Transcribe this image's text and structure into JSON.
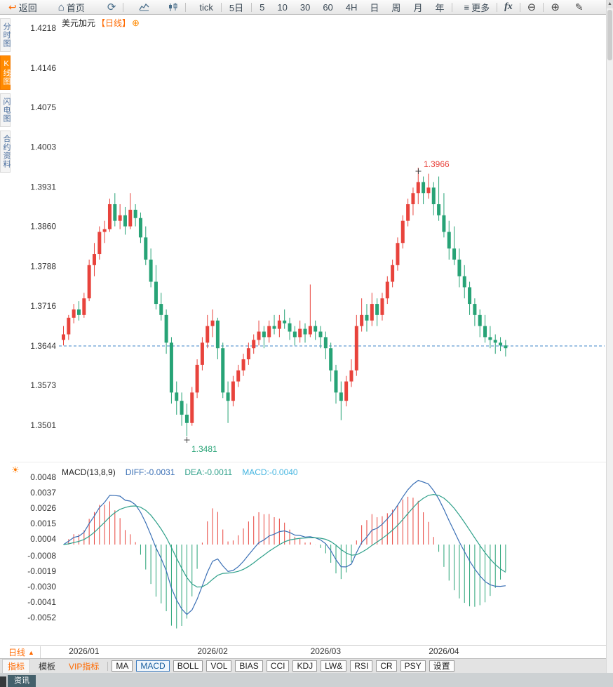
{
  "toolbar": {
    "back": "返回",
    "home": "首页",
    "tick_label": "tick",
    "five_day": "5日",
    "periods": [
      "5",
      "10",
      "30",
      "60",
      "4H",
      "日",
      "周",
      "月",
      "年"
    ],
    "more": "更多",
    "fx": "fx"
  },
  "sidebar": {
    "items": [
      {
        "label": "分时图",
        "active": false
      },
      {
        "label": "K线图",
        "active": true
      },
      {
        "label": "闪电图",
        "active": false
      },
      {
        "label": "合约资料",
        "active": false
      }
    ]
  },
  "chart": {
    "symbol": "美元加元",
    "period_tag": "【日线】"
  },
  "macd_header": {
    "title": "MACD(13,8,9)",
    "diff": "DIFF:-0.0031",
    "dea": "DEA:-0.0011",
    "macd": "MACD:-0.0040"
  },
  "axes": {
    "price_ticks": [
      "1.4218",
      "1.4146",
      "1.4075",
      "1.4003",
      "1.3931",
      "1.3860",
      "1.3788",
      "1.3716",
      "1.3644",
      "1.3573",
      "1.3501"
    ],
    "macd_ticks": [
      "0.0048",
      "0.0037",
      "0.0026",
      "0.0015",
      "0.0004",
      "-0.0008",
      "-0.0019",
      "-0.0030",
      "-0.0041",
      "-0.0052"
    ],
    "x_ticks": [
      "2026/01",
      "2026/02",
      "2026/03",
      "2026/04"
    ]
  },
  "bottom": {
    "period_selector": "日线",
    "news_tab": "资讯"
  },
  "indicator_bar": {
    "tabs": [
      {
        "label": "指标",
        "active": true,
        "vip": false
      },
      {
        "label": "模板",
        "active": false,
        "vip": false
      },
      {
        "label": "VIP指标",
        "active": false,
        "vip": true
      }
    ],
    "buttons": [
      "MA",
      "MACD",
      "BOLL",
      "VOL",
      "BIAS",
      "CCI",
      "KDJ",
      "LW&",
      "RSI",
      "CR",
      "PSY",
      "设置"
    ],
    "active_button": "MACD"
  },
  "colors": {
    "up": "#e8433c",
    "down": "#27a376",
    "accent_orange": "#ff6a00",
    "diff_line": "#3a6fb5",
    "dea_line": "#2fa08a",
    "macd_value_text": "#45b5e0",
    "last_price_line": "#3f86c9",
    "axis_text": "#333333"
  },
  "chart_data": {
    "type": "candlestick",
    "symbol": "美元加元",
    "period": "日线",
    "high_annotation": "1.3966",
    "low_annotation": "1.3481",
    "high_index": 69,
    "low_index": 24,
    "last_price": 1.3644,
    "price_axis_range": [
      1.3501,
      1.4218
    ],
    "x_axis_labels": [
      "2026/01",
      "2026/02",
      "2026/03",
      "2026/04"
    ],
    "x_label_indices": [
      4,
      29,
      51,
      74
    ],
    "macd_axis_range": [
      -0.0052,
      0.0048
    ],
    "macd_last": {
      "diff": -0.0031,
      "dea": -0.0011,
      "macd": -0.004
    },
    "ohlc": [
      [
        1.3655,
        1.368,
        1.3645,
        1.3665
      ],
      [
        1.3665,
        1.37,
        1.3655,
        1.3695
      ],
      [
        1.3695,
        1.372,
        1.3685,
        1.371
      ],
      [
        1.371,
        1.3725,
        1.369,
        1.37
      ],
      [
        1.37,
        1.374,
        1.3695,
        1.373
      ],
      [
        1.373,
        1.38,
        1.3725,
        1.379
      ],
      [
        1.379,
        1.383,
        1.377,
        1.381
      ],
      [
        1.381,
        1.386,
        1.38,
        1.385
      ],
      [
        1.385,
        1.387,
        1.383,
        1.3855
      ],
      [
        1.3855,
        1.391,
        1.385,
        1.39
      ],
      [
        1.39,
        1.392,
        1.386,
        1.387
      ],
      [
        1.387,
        1.39,
        1.3855,
        1.388
      ],
      [
        1.388,
        1.3895,
        1.3845,
        1.386
      ],
      [
        1.386,
        1.392,
        1.3855,
        1.389
      ],
      [
        1.389,
        1.39,
        1.386,
        1.3875
      ],
      [
        1.3875,
        1.3885,
        1.383,
        1.384
      ],
      [
        1.384,
        1.386,
        1.379,
        1.38
      ],
      [
        1.38,
        1.382,
        1.375,
        1.376
      ],
      [
        1.376,
        1.379,
        1.371,
        1.372
      ],
      [
        1.372,
        1.374,
        1.369,
        1.37
      ],
      [
        1.37,
        1.371,
        1.363,
        1.365
      ],
      [
        1.365,
        1.366,
        1.354,
        1.356
      ],
      [
        1.356,
        1.358,
        1.352,
        1.3545
      ],
      [
        1.3545,
        1.356,
        1.35,
        1.352
      ],
      [
        1.352,
        1.354,
        1.3481,
        1.3505
      ],
      [
        1.3505,
        1.357,
        1.35,
        1.356
      ],
      [
        1.356,
        1.362,
        1.355,
        1.361
      ],
      [
        1.361,
        1.366,
        1.36,
        1.365
      ],
      [
        1.365,
        1.37,
        1.364,
        1.368
      ],
      [
        1.368,
        1.371,
        1.366,
        1.369
      ],
      [
        1.369,
        1.3695,
        1.362,
        1.364
      ],
      [
        1.364,
        1.365,
        1.355,
        1.356
      ],
      [
        1.356,
        1.358,
        1.3505,
        1.3545
      ],
      [
        1.3545,
        1.359,
        1.3535,
        1.358
      ],
      [
        1.358,
        1.361,
        1.357,
        1.36
      ],
      [
        1.36,
        1.363,
        1.359,
        1.362
      ],
      [
        1.362,
        1.365,
        1.361,
        1.364
      ],
      [
        1.364,
        1.3665,
        1.363,
        1.3655
      ],
      [
        1.3655,
        1.369,
        1.3645,
        1.367
      ],
      [
        1.367,
        1.368,
        1.364,
        1.366
      ],
      [
        1.366,
        1.369,
        1.365,
        1.368
      ],
      [
        1.368,
        1.37,
        1.3665,
        1.3675
      ],
      [
        1.3675,
        1.37,
        1.366,
        1.369
      ],
      [
        1.369,
        1.371,
        1.3675,
        1.3685
      ],
      [
        1.3685,
        1.3695,
        1.3655,
        1.367
      ],
      [
        1.367,
        1.368,
        1.3645,
        1.366
      ],
      [
        1.366,
        1.369,
        1.365,
        1.3675
      ],
      [
        1.3675,
        1.3685,
        1.365,
        1.3665
      ],
      [
        1.3665,
        1.3755,
        1.366,
        1.368
      ],
      [
        1.368,
        1.369,
        1.3655,
        1.367
      ],
      [
        1.367,
        1.368,
        1.364,
        1.366
      ],
      [
        1.366,
        1.367,
        1.362,
        1.364
      ],
      [
        1.364,
        1.365,
        1.358,
        1.36
      ],
      [
        1.36,
        1.361,
        1.354,
        1.356
      ],
      [
        1.356,
        1.358,
        1.351,
        1.3545
      ],
      [
        1.3545,
        1.359,
        1.3535,
        1.358
      ],
      [
        1.358,
        1.362,
        1.357,
        1.36
      ],
      [
        1.36,
        1.37,
        1.359,
        1.368
      ],
      [
        1.368,
        1.373,
        1.367,
        1.37
      ],
      [
        1.37,
        1.372,
        1.367,
        1.369
      ],
      [
        1.369,
        1.374,
        1.368,
        1.372
      ],
      [
        1.372,
        1.373,
        1.368,
        1.37
      ],
      [
        1.37,
        1.374,
        1.369,
        1.373
      ],
      [
        1.373,
        1.377,
        1.372,
        1.376
      ],
      [
        1.376,
        1.38,
        1.375,
        1.379
      ],
      [
        1.379,
        1.384,
        1.378,
        1.383
      ],
      [
        1.383,
        1.388,
        1.382,
        1.387
      ],
      [
        1.387,
        1.391,
        1.386,
        1.39
      ],
      [
        1.39,
        1.393,
        1.388,
        1.392
      ],
      [
        1.392,
        1.3966,
        1.39,
        1.394
      ],
      [
        1.394,
        1.395,
        1.39,
        1.392
      ],
      [
        1.392,
        1.3955,
        1.391,
        1.393
      ],
      [
        1.393,
        1.394,
        1.388,
        1.39
      ],
      [
        1.39,
        1.395,
        1.387,
        1.388
      ],
      [
        1.388,
        1.392,
        1.384,
        1.385
      ],
      [
        1.385,
        1.387,
        1.38,
        1.382
      ],
      [
        1.382,
        1.386,
        1.379,
        1.38
      ],
      [
        1.38,
        1.382,
        1.375,
        1.377
      ],
      [
        1.377,
        1.379,
        1.373,
        1.375
      ],
      [
        1.375,
        1.376,
        1.37,
        1.372
      ],
      [
        1.372,
        1.373,
        1.368,
        1.37
      ],
      [
        1.37,
        1.371,
        1.366,
        1.368
      ],
      [
        1.368,
        1.37,
        1.365,
        1.366
      ],
      [
        1.366,
        1.368,
        1.364,
        1.3655
      ],
      [
        1.3655,
        1.3665,
        1.363,
        1.365
      ],
      [
        1.365,
        1.366,
        1.3635,
        1.3645
      ],
      [
        1.3645,
        1.3655,
        1.3625,
        1.364
      ]
    ]
  }
}
